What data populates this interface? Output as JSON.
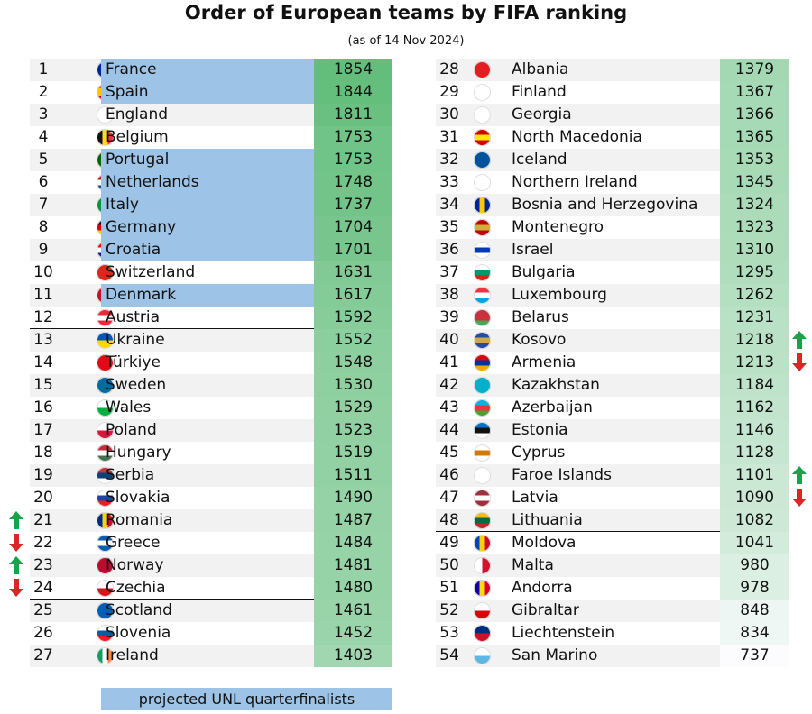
{
  "title": "Order of European teams by FIFA ranking",
  "subtitle": "(as of 14 Nov 2024)",
  "rows": [
    {
      "rank": 1,
      "team": "France",
      "points": 1854,
      "unl": true
    },
    {
      "rank": 2,
      "team": "Spain",
      "points": 1844,
      "unl": true
    },
    {
      "rank": 3,
      "team": "England",
      "points": 1811,
      "unl": false
    },
    {
      "rank": 4,
      "team": "Belgium",
      "points": 1753,
      "unl": false
    },
    {
      "rank": 5,
      "team": "Portugal",
      "points": 1753,
      "unl": true
    },
    {
      "rank": 6,
      "team": "Netherlands",
      "points": 1748,
      "unl": true
    },
    {
      "rank": 7,
      "team": "Italy",
      "points": 1737,
      "unl": true
    },
    {
      "rank": 8,
      "team": "Germany",
      "points": 1704,
      "unl": true
    },
    {
      "rank": 9,
      "team": "Croatia",
      "points": 1701,
      "unl": true
    },
    {
      "rank": 10,
      "team": "Switzerland",
      "points": 1631,
      "unl": false
    },
    {
      "rank": 11,
      "team": "Denmark",
      "points": 1617,
      "unl": true
    },
    {
      "rank": 12,
      "team": "Austria",
      "points": 1592,
      "unl": false
    },
    {
      "rank": 13,
      "team": "Ukraine",
      "points": 1552,
      "unl": false
    },
    {
      "rank": 14,
      "team": "Türkiye",
      "points": 1548,
      "unl": false
    },
    {
      "rank": 15,
      "team": "Sweden",
      "points": 1530,
      "unl": false
    },
    {
      "rank": 16,
      "team": "Wales",
      "points": 1529,
      "unl": false
    },
    {
      "rank": 17,
      "team": "Poland",
      "points": 1523,
      "unl": false
    },
    {
      "rank": 18,
      "team": "Hungary",
      "points": 1519,
      "unl": false
    },
    {
      "rank": 19,
      "team": "Serbia",
      "points": 1511,
      "unl": false
    },
    {
      "rank": 20,
      "team": "Slovakia",
      "points": 1490,
      "unl": false
    },
    {
      "rank": 21,
      "team": "Romania",
      "points": 1487,
      "unl": false,
      "trend": "up"
    },
    {
      "rank": 22,
      "team": "Greece",
      "points": 1484,
      "unl": false,
      "trend": "down"
    },
    {
      "rank": 23,
      "team": "Norway",
      "points": 1481,
      "unl": false,
      "trend": "up"
    },
    {
      "rank": 24,
      "team": "Czechia",
      "points": 1480,
      "unl": false,
      "trend": "down"
    },
    {
      "rank": 25,
      "team": "Scotland",
      "points": 1461,
      "unl": false
    },
    {
      "rank": 26,
      "team": "Slovenia",
      "points": 1452,
      "unl": false
    },
    {
      "rank": 27,
      "team": "Ireland",
      "points": 1403,
      "unl": false
    },
    {
      "rank": 28,
      "team": "Albania",
      "points": 1379,
      "unl": false
    },
    {
      "rank": 29,
      "team": "Finland",
      "points": 1367,
      "unl": false
    },
    {
      "rank": 30,
      "team": "Georgia",
      "points": 1366,
      "unl": false
    },
    {
      "rank": 31,
      "team": "North Macedonia",
      "points": 1365,
      "unl": false
    },
    {
      "rank": 32,
      "team": "Iceland",
      "points": 1353,
      "unl": false
    },
    {
      "rank": 33,
      "team": "Northern Ireland",
      "points": 1345,
      "unl": false
    },
    {
      "rank": 34,
      "team": "Bosnia and Herzegovina",
      "points": 1324,
      "unl": false
    },
    {
      "rank": 35,
      "team": "Montenegro",
      "points": 1323,
      "unl": false
    },
    {
      "rank": 36,
      "team": "Israel",
      "points": 1310,
      "unl": false
    },
    {
      "rank": 37,
      "team": "Bulgaria",
      "points": 1295,
      "unl": false
    },
    {
      "rank": 38,
      "team": "Luxembourg",
      "points": 1262,
      "unl": false
    },
    {
      "rank": 39,
      "team": "Belarus",
      "points": 1231,
      "unl": false
    },
    {
      "rank": 40,
      "team": "Kosovo",
      "points": 1218,
      "unl": false,
      "trend": "up"
    },
    {
      "rank": 41,
      "team": "Armenia",
      "points": 1213,
      "unl": false,
      "trend": "down"
    },
    {
      "rank": 42,
      "team": "Kazakhstan",
      "points": 1184,
      "unl": false
    },
    {
      "rank": 43,
      "team": "Azerbaijan",
      "points": 1162,
      "unl": false
    },
    {
      "rank": 44,
      "team": "Estonia",
      "points": 1146,
      "unl": false
    },
    {
      "rank": 45,
      "team": "Cyprus",
      "points": 1128,
      "unl": false
    },
    {
      "rank": 46,
      "team": "Faroe Islands",
      "points": 1101,
      "unl": false,
      "trend": "up"
    },
    {
      "rank": 47,
      "team": "Latvia",
      "points": 1090,
      "unl": false,
      "trend": "down"
    },
    {
      "rank": 48,
      "team": "Lithuania",
      "points": 1082,
      "unl": false
    },
    {
      "rank": 49,
      "team": "Moldova",
      "points": 1041,
      "unl": false
    },
    {
      "rank": 50,
      "team": "Malta",
      "points": 980,
      "unl": false
    },
    {
      "rank": 51,
      "team": "Andorra",
      "points": 978,
      "unl": false
    },
    {
      "rank": 52,
      "team": "Gibraltar",
      "points": 848,
      "unl": false
    },
    {
      "rank": 53,
      "team": "Liechtenstein",
      "points": 834,
      "unl": false
    },
    {
      "rank": 54,
      "team": "San Marino",
      "points": 737,
      "unl": false
    }
  ],
  "legend": {
    "label": "projected UNL quarterfinalists",
    "color": "#9dc3e6"
  }
}
